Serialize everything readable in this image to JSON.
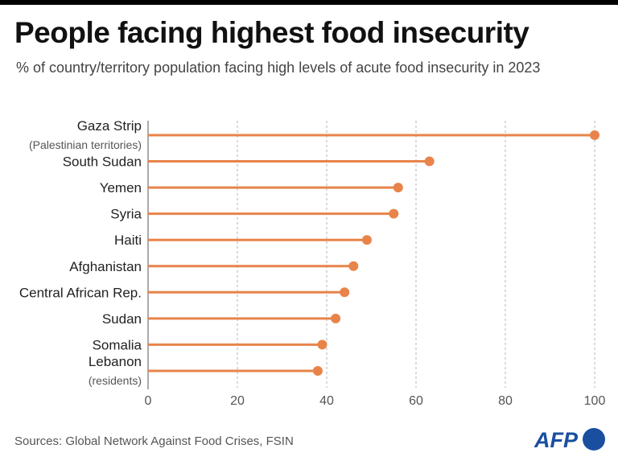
{
  "chart_data": {
    "type": "lollipop",
    "title": "People facing highest food insecurity",
    "subtitle": "% of country/territory population facing high levels of acute food insecurity in 2023",
    "categories": [
      {
        "name": "Gaza Strip",
        "note": "(Palestinian territories)"
      },
      {
        "name": "South Sudan"
      },
      {
        "name": "Yemen"
      },
      {
        "name": "Syria"
      },
      {
        "name": "Haiti"
      },
      {
        "name": "Afghanistan"
      },
      {
        "name": "Central African Rep."
      },
      {
        "name": "Sudan"
      },
      {
        "name": "Somalia"
      },
      {
        "name": "Lebanon",
        "note": "(residents)"
      }
    ],
    "values": [
      100,
      63,
      56,
      55,
      49,
      46,
      44,
      42,
      39,
      38
    ],
    "xlim": [
      0,
      100
    ],
    "xticks": [
      0,
      20,
      40,
      60,
      80,
      100
    ],
    "grid": "vertical dashed",
    "color": "#e8844a"
  },
  "source": "Sources: Global Network Against Food Crises, FSIN",
  "logo": {
    "text": "AFP",
    "color": "#1a4fa0"
  }
}
